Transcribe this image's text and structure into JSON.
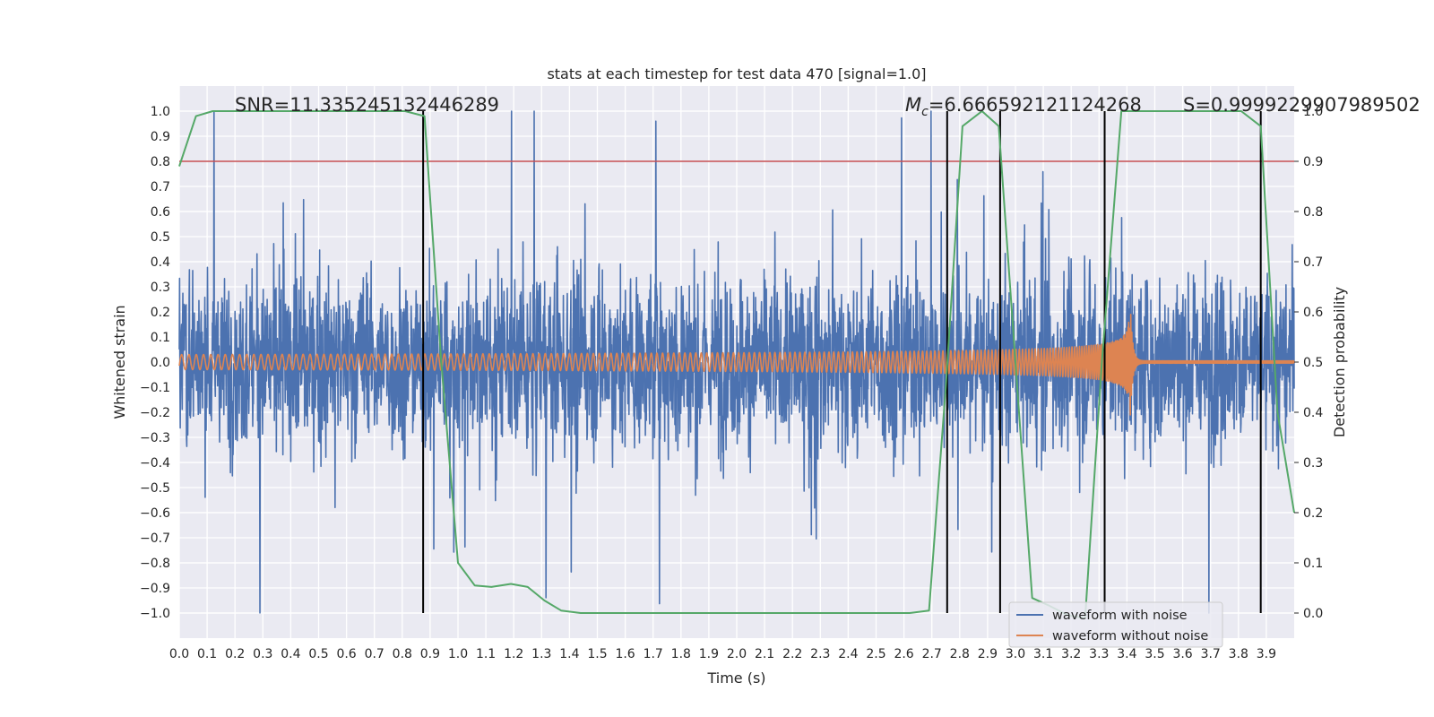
{
  "chart_data": {
    "type": "line",
    "title": "stats at each timestep for test data 470 [signal=1.0]",
    "xlabel": "Time (s)",
    "ylabel": "Whitened strain",
    "y2label": "Detection probability",
    "xlim": [
      0.0,
      4.0
    ],
    "ylim": [
      -1.1,
      1.1
    ],
    "y2lim": [
      -0.05,
      1.05
    ],
    "x_ticks": [
      "0.0",
      "0.1",
      "0.2",
      "0.3",
      "0.4",
      "0.5",
      "0.6",
      "0.7",
      "0.8",
      "0.9",
      "1.0",
      "1.1",
      "1.2",
      "1.3",
      "1.4",
      "1.5",
      "1.6",
      "1.7",
      "1.8",
      "1.9",
      "2.0",
      "2.1",
      "2.2",
      "2.3",
      "2.4",
      "2.5",
      "2.6",
      "2.7",
      "2.8",
      "2.9",
      "3.0",
      "3.1",
      "3.2",
      "3.3",
      "3.4",
      "3.5",
      "3.6",
      "3.7",
      "3.8",
      "3.9"
    ],
    "y_ticks": [
      "1.0",
      "0.9",
      "0.8",
      "0.7",
      "0.6",
      "0.5",
      "0.4",
      "0.3",
      "0.2",
      "0.1",
      "0.0",
      "−0.1",
      "−0.2",
      "−0.3",
      "−0.4",
      "−0.5",
      "−0.6",
      "−0.7",
      "−0.8",
      "−0.9",
      "−1.0"
    ],
    "y2_ticks": [
      "1.0",
      "0.9",
      "0.8",
      "0.7",
      "0.6",
      "0.5",
      "0.4",
      "0.3",
      "0.2",
      "0.1",
      "0.0"
    ],
    "grid": true,
    "legend_placement": "lower-right",
    "series": [
      {
        "name": "waveform with noise",
        "color": "#4c72b0",
        "axis": "left",
        "kind": "noise",
        "sigma": 0.17,
        "max_abs": 1.0,
        "peak_y": 0.96,
        "peak_x": 1.71
      },
      {
        "name": "waveform without noise",
        "color": "#dd8452",
        "axis": "left",
        "kind": "chirp",
        "amp_start": 0.03,
        "amp_peak": 0.3,
        "merger_x": 3.41,
        "ringdown_amp": 0.005
      },
      {
        "name": "",
        "color": "#55a868",
        "axis": "right",
        "x": [
          0.0,
          0.06,
          0.12,
          0.19,
          0.25,
          0.31,
          0.37,
          0.44,
          0.5,
          0.56,
          0.62,
          0.69,
          0.75,
          0.81,
          0.88,
          0.94,
          1.0,
          1.06,
          1.12,
          1.19,
          1.25,
          1.31,
          1.37,
          1.44,
          1.5,
          1.56,
          1.62,
          1.69,
          1.75,
          1.81,
          1.88,
          1.94,
          2.0,
          2.06,
          2.12,
          2.19,
          2.25,
          2.31,
          2.37,
          2.44,
          2.5,
          2.56,
          2.62,
          2.69,
          2.75,
          2.81,
          2.88,
          2.94,
          3.0,
          3.06,
          3.12,
          3.19,
          3.25,
          3.31,
          3.38,
          3.44,
          3.5,
          3.56,
          3.62,
          3.69,
          3.75,
          3.81,
          3.88,
          3.94,
          4.0
        ],
        "values": [
          0.89,
          0.99,
          1.0,
          1.0,
          1.0,
          1.0,
          1.0,
          1.0,
          1.0,
          1.0,
          1.0,
          1.0,
          1.0,
          1.0,
          0.99,
          0.5,
          0.1,
          0.055,
          0.052,
          0.058,
          0.052,
          0.025,
          0.005,
          0.0,
          0.0,
          0.0,
          0.0,
          0.0,
          0.0,
          0.0,
          0.0,
          0.0,
          0.0,
          0.0,
          0.0,
          0.0,
          0.0,
          0.0,
          0.0,
          0.0,
          0.0,
          0.0,
          0.0,
          0.005,
          0.45,
          0.97,
          1.0,
          0.97,
          0.5,
          0.03,
          0.015,
          -0.005,
          -0.01,
          0.5,
          1.0,
          1.0,
          1.0,
          1.0,
          1.0,
          1.0,
          1.0,
          1.0,
          0.97,
          0.4,
          0.2
        ]
      }
    ],
    "hlines": [
      {
        "y2": 0.9,
        "color": "#c44e52"
      }
    ],
    "vlines": [
      {
        "x": 0.875,
        "color": "#000000"
      },
      {
        "x": 2.755,
        "color": "#000000"
      },
      {
        "x": 2.945,
        "color": "#000000"
      },
      {
        "x": 3.32,
        "color": "#000000"
      },
      {
        "x": 3.88,
        "color": "#000000"
      }
    ],
    "annotations": [
      {
        "id": "snr",
        "text": "SNR=11.335245132446289"
      },
      {
        "id": "mc",
        "prefix": "M",
        "sub": "c",
        "text": "=6.666592121124268"
      },
      {
        "id": "s",
        "text": "S=0.9999229907989502"
      }
    ]
  }
}
